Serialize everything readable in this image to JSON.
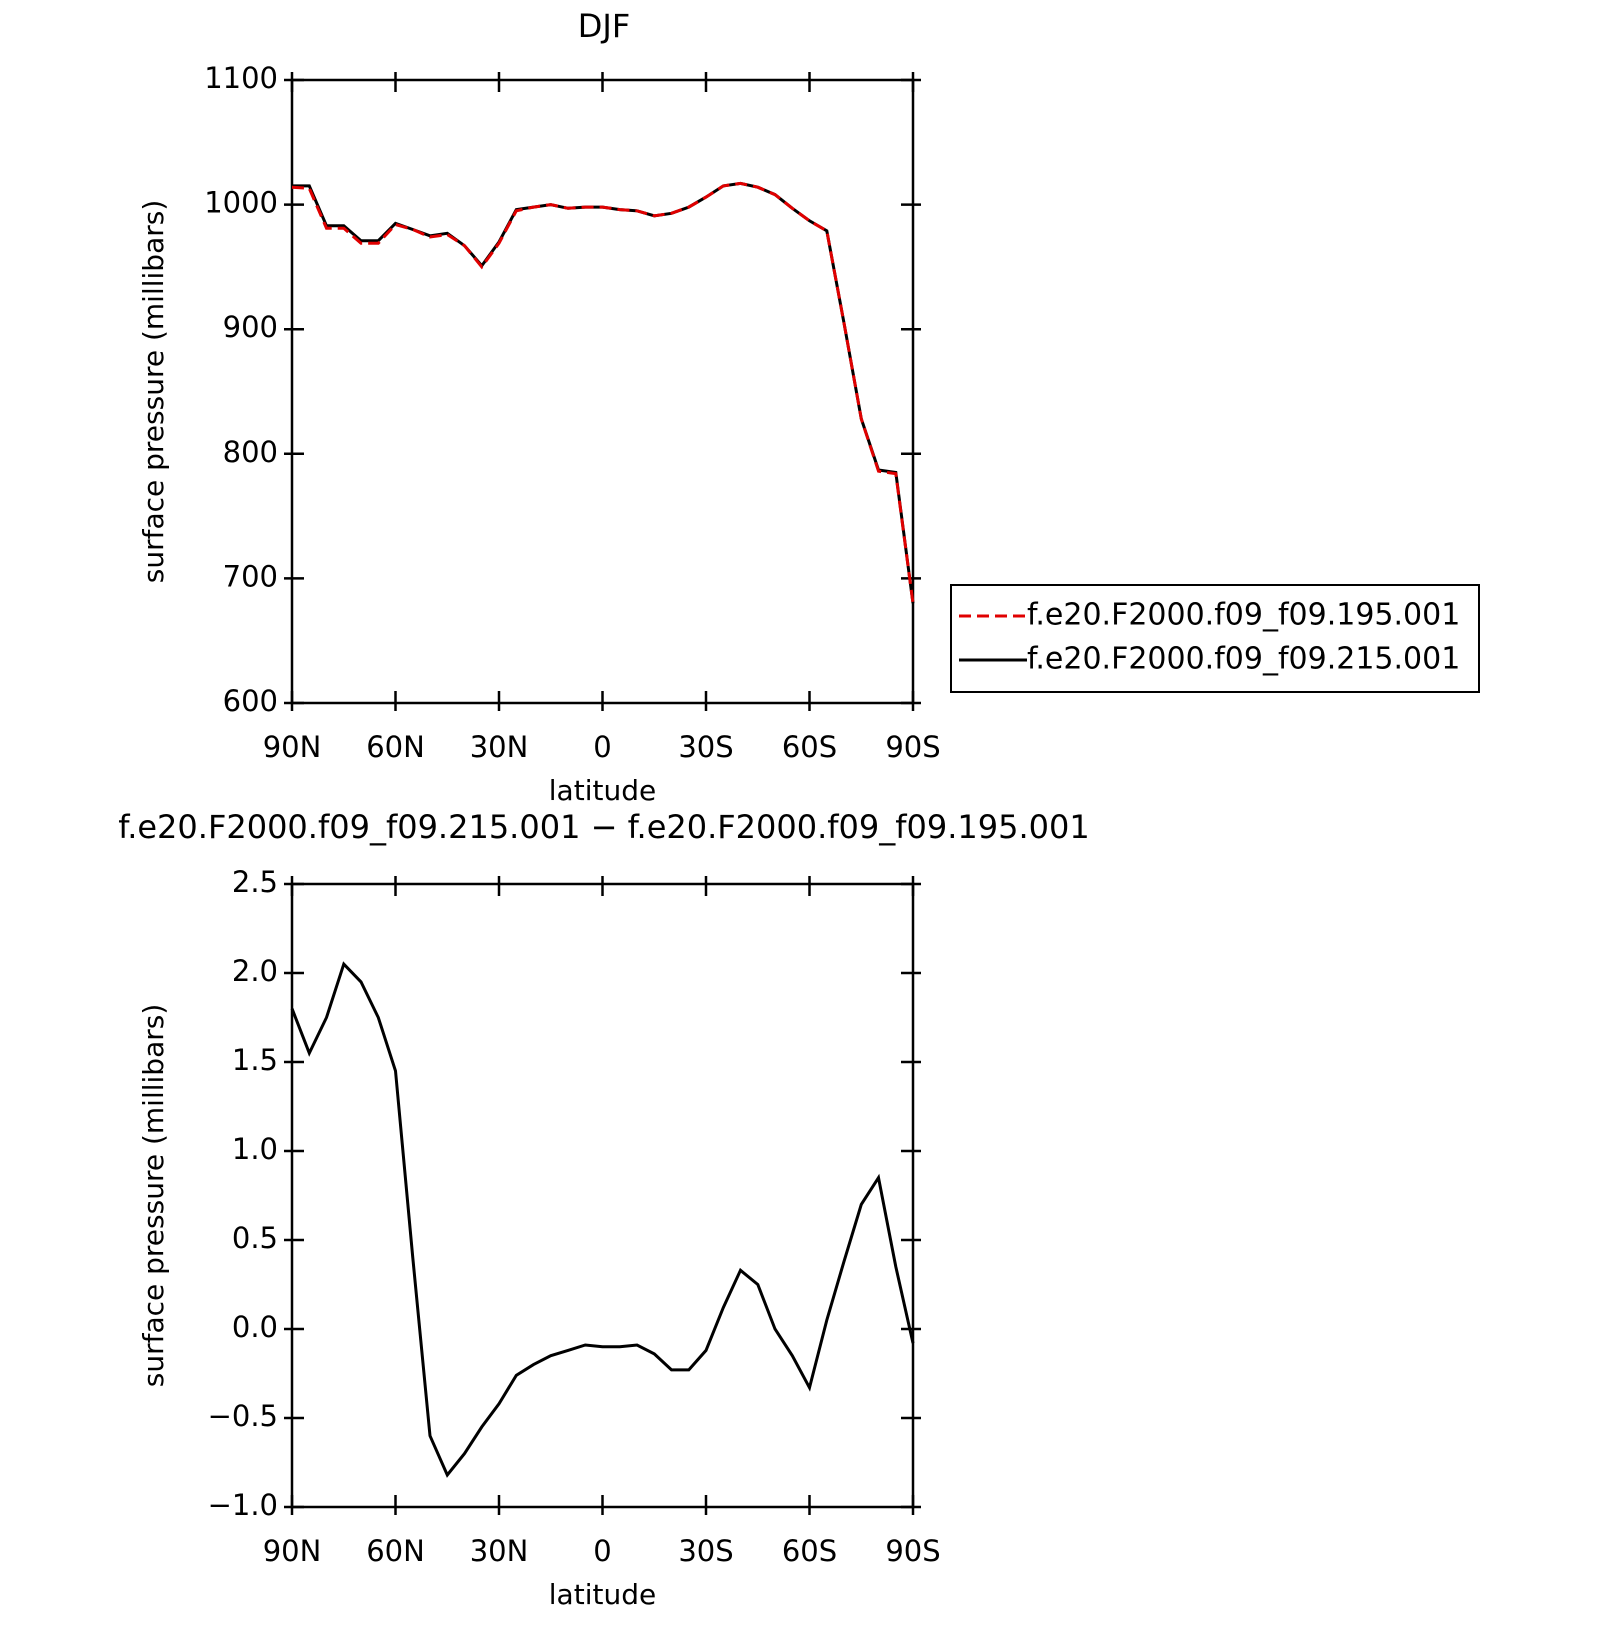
{
  "chart_data": [
    {
      "type": "line",
      "title": "DJF",
      "xlabel": "latitude",
      "ylabel": "surface pressure (millibars)",
      "x": [
        90,
        85,
        80,
        75,
        70,
        65,
        60,
        55,
        50,
        45,
        40,
        35,
        30,
        25,
        20,
        15,
        10,
        5,
        0,
        -5,
        -10,
        -15,
        -20,
        -25,
        -30,
        -35,
        -40,
        -45,
        -50,
        -55,
        -60,
        -65,
        -70,
        -75,
        -80,
        -85,
        -90
      ],
      "xlim": [
        90,
        -90
      ],
      "xticks": [
        {
          "value": 90,
          "label": "90N"
        },
        {
          "value": 60,
          "label": "60N"
        },
        {
          "value": 30,
          "label": "30N"
        },
        0,
        {
          "value": -30,
          "label": "30S"
        },
        {
          "value": -60,
          "label": "60S"
        },
        {
          "value": -90,
          "label": "90S"
        }
      ],
      "ylim": [
        600,
        1100
      ],
      "yticks": [
        600,
        700,
        800,
        900,
        1000,
        1100
      ],
      "legend": "right",
      "series": [
        {
          "name": "f.e20.F2000.f09_f09.195.001",
          "color": "#e00000",
          "line_style": "dashed",
          "values": [
            1014,
            1013,
            981,
            981,
            969,
            969,
            984,
            980,
            974,
            976,
            967,
            950,
            969,
            995,
            998,
            1000,
            997,
            998,
            998,
            996,
            995,
            991,
            993,
            998,
            1006,
            1015,
            1017,
            1014,
            1008,
            997,
            987,
            979,
            905,
            828,
            786,
            784,
            680
          ]
        },
        {
          "name": "f.e20.F2000.f09_f09.215.001",
          "color": "#000000",
          "line_style": "solid",
          "values": [
            1015,
            1015,
            983,
            983,
            971,
            971,
            985,
            980,
            975,
            977,
            967,
            951,
            970,
            996,
            998,
            1000,
            997,
            998,
            998,
            996,
            995,
            991,
            993,
            998,
            1006,
            1015,
            1017,
            1014,
            1008,
            997,
            987,
            979,
            905,
            828,
            787,
            785,
            680
          ]
        }
      ]
    },
    {
      "type": "line",
      "title": "f.e20.F2000.f09_f09.215.001 − f.e20.F2000.f09_f09.195.001",
      "xlabel": "latitude",
      "ylabel": "surface pressure (millibars)",
      "x": [
        90,
        85,
        80,
        75,
        70,
        65,
        60,
        55,
        50,
        45,
        40,
        35,
        30,
        25,
        20,
        15,
        10,
        5,
        0,
        -5,
        -10,
        -15,
        -20,
        -25,
        -30,
        -35,
        -40,
        -45,
        -50,
        -55,
        -60,
        -65,
        -70,
        -75,
        -80,
        -85,
        -90
      ],
      "xlim": [
        90,
        -90
      ],
      "xticks": [
        {
          "value": 90,
          "label": "90N"
        },
        {
          "value": 60,
          "label": "60N"
        },
        {
          "value": 30,
          "label": "30N"
        },
        0,
        {
          "value": -30,
          "label": "30S"
        },
        {
          "value": -60,
          "label": "60S"
        },
        {
          "value": -90,
          "label": "90S"
        }
      ],
      "ylim": [
        -1.0,
        2.5
      ],
      "yticks": [
        {
          "value": -1.0,
          "label": "−1.0"
        },
        {
          "value": -0.5,
          "label": "−0.5"
        },
        {
          "value": 0,
          "label": "0.0"
        },
        0.5,
        {
          "value": 1.0,
          "label": "1.0"
        },
        1.5,
        {
          "value": 2.0,
          "label": "2.0"
        },
        2.5
      ],
      "series": [
        {
          "color": "#000000",
          "line_style": "solid",
          "values": [
            1.8,
            1.55,
            1.75,
            2.05,
            1.95,
            1.75,
            1.45,
            0.4,
            -0.6,
            -0.82,
            -0.7,
            -0.55,
            -0.42,
            -0.26,
            -0.2,
            -0.15,
            -0.12,
            -0.09,
            -0.1,
            -0.1,
            -0.09,
            -0.14,
            -0.23,
            -0.23,
            -0.12,
            0.12,
            0.33,
            0.25,
            0.0,
            -0.15,
            -0.33,
            0.05,
            0.38,
            0.7,
            0.85,
            0.35,
            -0.08
          ]
        }
      ]
    }
  ]
}
